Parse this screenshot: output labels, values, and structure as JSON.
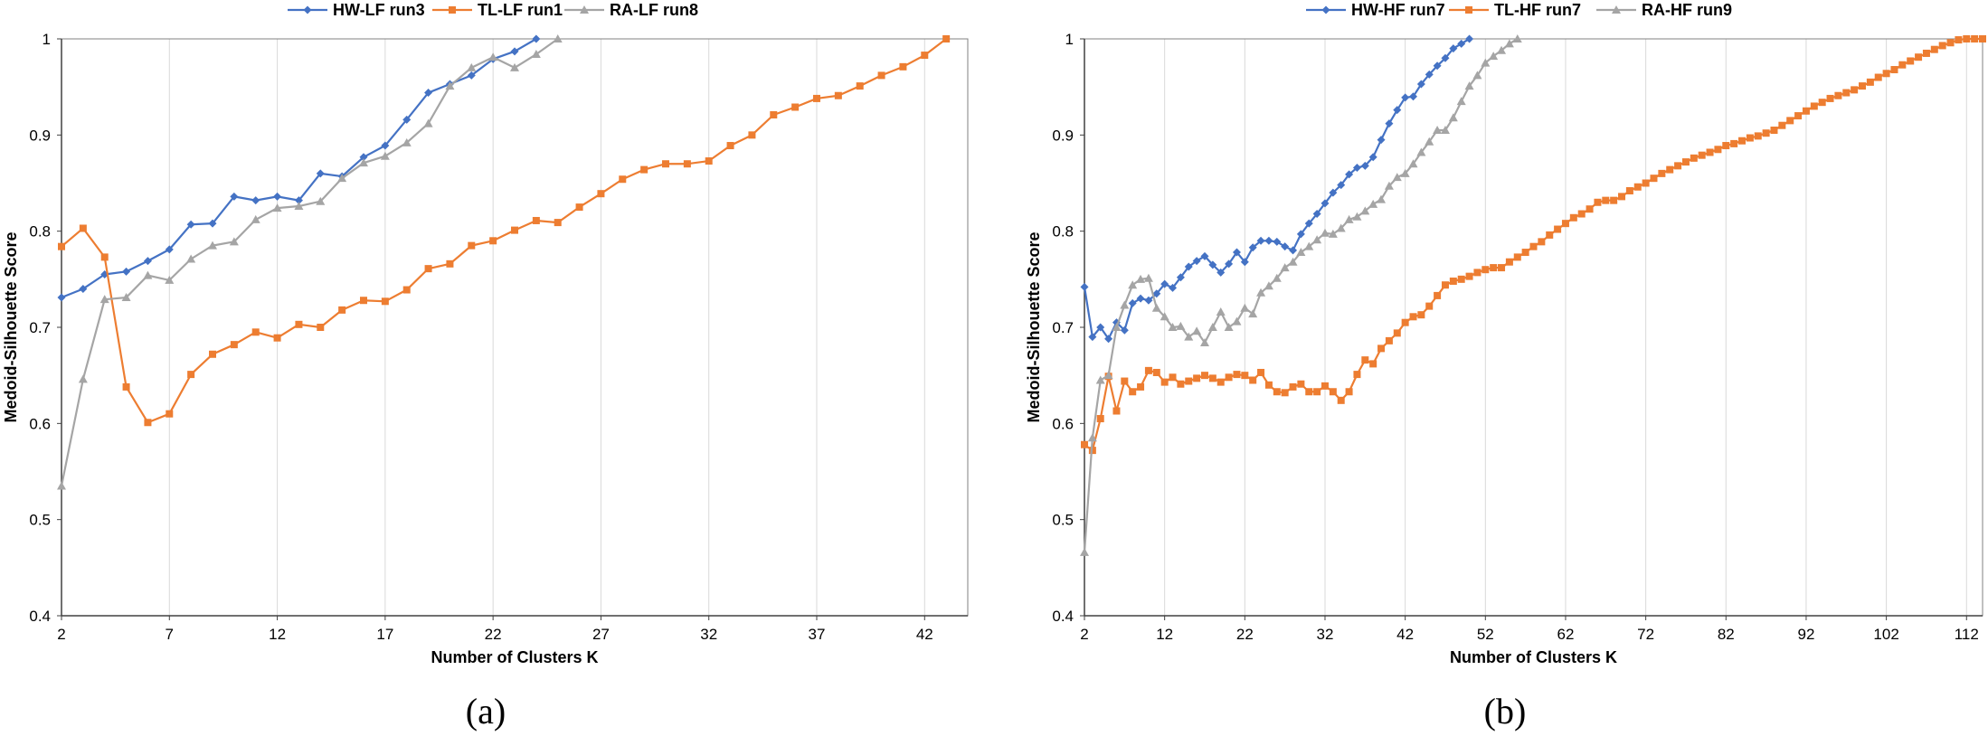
{
  "chart_data": [
    {
      "type": "line",
      "caption": "(a)",
      "title": "",
      "xlabel": "Number of Clusters K",
      "ylabel": "Medoid-Silhouette Score",
      "xlim": [
        2,
        44
      ],
      "ylim": [
        0.4,
        1.0
      ],
      "xticks": [
        2,
        7,
        12,
        17,
        22,
        27,
        32,
        37,
        42
      ],
      "yticks": [
        0.4,
        0.5,
        0.6,
        0.7,
        0.8,
        0.9,
        1.0
      ],
      "ytick_labels": [
        "0.4",
        "0.5",
        "0.6",
        "0.7",
        "0.8",
        "0.9",
        "1"
      ],
      "legend_position": "top",
      "grid": "vertical",
      "series": [
        {
          "name": "HW-LF run3",
          "color": "#4472C4",
          "marker": "diamond",
          "x": [
            2,
            3,
            4,
            5,
            6,
            7,
            8,
            9,
            10,
            11,
            12,
            13,
            14,
            15,
            16,
            17,
            18,
            19,
            20,
            21,
            22,
            23,
            24
          ],
          "values": [
            0.731,
            0.74,
            0.755,
            0.758,
            0.769,
            0.781,
            0.807,
            0.808,
            0.836,
            0.832,
            0.836,
            0.832,
            0.86,
            0.857,
            0.877,
            0.889,
            0.916,
            0.944,
            0.953,
            0.962,
            0.979,
            0.987,
            1.0
          ]
        },
        {
          "name": "TL-LF run1",
          "color": "#ED7D31",
          "marker": "square",
          "x": [
            2,
            3,
            4,
            5,
            6,
            7,
            8,
            9,
            10,
            11,
            12,
            13,
            14,
            15,
            16,
            17,
            18,
            19,
            20,
            21,
            22,
            23,
            24,
            25,
            26,
            27,
            28,
            29,
            30,
            31,
            32,
            33,
            34,
            35,
            36,
            37,
            38,
            39,
            40,
            41,
            42,
            43
          ],
          "values": [
            0.784,
            0.803,
            0.773,
            0.638,
            0.601,
            0.61,
            0.651,
            0.672,
            0.682,
            0.695,
            0.689,
            0.703,
            0.7,
            0.718,
            0.728,
            0.727,
            0.739,
            0.761,
            0.766,
            0.785,
            0.79,
            0.801,
            0.811,
            0.809,
            0.825,
            0.839,
            0.854,
            0.864,
            0.87,
            0.87,
            0.873,
            0.889,
            0.9,
            0.921,
            0.929,
            0.938,
            0.941,
            0.951,
            0.962,
            0.971,
            0.983,
            1.0
          ]
        },
        {
          "name": "RA-LF run8",
          "color": "#A5A5A5",
          "marker": "triangle",
          "x": [
            2,
            3,
            4,
            5,
            6,
            7,
            8,
            9,
            10,
            11,
            12,
            13,
            14,
            15,
            16,
            17,
            18,
            19,
            20,
            21,
            22,
            23,
            24,
            25
          ],
          "values": [
            0.535,
            0.646,
            0.729,
            0.731,
            0.754,
            0.749,
            0.771,
            0.785,
            0.789,
            0.812,
            0.824,
            0.826,
            0.831,
            0.855,
            0.871,
            0.878,
            0.892,
            0.912,
            0.951,
            0.97,
            0.981,
            0.97,
            0.984,
            1.0
          ]
        }
      ]
    },
    {
      "type": "line",
      "caption": "(b)",
      "title": "",
      "xlabel": "Number of Clusters K",
      "ylabel": "Medoid-Silhouette Score",
      "xlim": [
        2,
        114
      ],
      "ylim": [
        0.4,
        1.0
      ],
      "xticks": [
        2,
        12,
        22,
        32,
        42,
        52,
        62,
        72,
        82,
        92,
        102,
        112
      ],
      "yticks": [
        0.4,
        0.5,
        0.6,
        0.7,
        0.8,
        0.9,
        1.0
      ],
      "ytick_labels": [
        "0.4",
        "0.5",
        "0.6",
        "0.7",
        "0.8",
        "0.9",
        "1"
      ],
      "legend_position": "top",
      "grid": "vertical",
      "series": [
        {
          "name": "HW-HF run7",
          "color": "#4472C4",
          "marker": "diamond",
          "x": [
            2,
            3,
            4,
            5,
            6,
            7,
            8,
            9,
            10,
            11,
            12,
            13,
            14,
            15,
            16,
            17,
            18,
            19,
            20,
            21,
            22,
            23,
            24,
            25,
            26,
            27,
            28,
            29,
            30,
            31,
            32,
            33,
            34,
            35,
            36,
            37,
            38,
            39,
            40,
            41,
            42,
            43,
            44,
            45,
            46,
            47,
            48,
            49,
            50
          ],
          "values": [
            0.742,
            0.69,
            0.7,
            0.688,
            0.705,
            0.697,
            0.725,
            0.73,
            0.728,
            0.735,
            0.745,
            0.741,
            0.752,
            0.763,
            0.769,
            0.774,
            0.765,
            0.757,
            0.766,
            0.778,
            0.768,
            0.783,
            0.79,
            0.79,
            0.789,
            0.784,
            0.78,
            0.797,
            0.808,
            0.818,
            0.829,
            0.84,
            0.848,
            0.859,
            0.866,
            0.868,
            0.877,
            0.895,
            0.912,
            0.926,
            0.939,
            0.94,
            0.953,
            0.963,
            0.972,
            0.98,
            0.99,
            0.995,
            1.0
          ]
        },
        {
          "name": "TL-HF run7",
          "color": "#ED7D31",
          "marker": "square",
          "x": [
            2,
            3,
            4,
            5,
            6,
            7,
            8,
            9,
            10,
            11,
            12,
            13,
            14,
            15,
            16,
            17,
            18,
            19,
            20,
            21,
            22,
            23,
            24,
            25,
            26,
            27,
            28,
            29,
            30,
            31,
            32,
            33,
            34,
            35,
            36,
            37,
            38,
            39,
            40,
            41,
            42,
            43,
            44,
            45,
            46,
            47,
            48,
            49,
            50,
            51,
            52,
            53,
            54,
            55,
            56,
            57,
            58,
            59,
            60,
            61,
            62,
            63,
            64,
            65,
            66,
            67,
            68,
            69,
            70,
            71,
            72,
            73,
            74,
            75,
            76,
            77,
            78,
            79,
            80,
            81,
            82,
            83,
            84,
            85,
            86,
            87,
            88,
            89,
            90,
            91,
            92,
            93,
            94,
            95,
            96,
            97,
            98,
            99,
            100,
            101,
            102,
            103,
            104,
            105,
            106,
            107,
            108,
            109,
            110,
            111,
            112,
            113,
            114
          ],
          "values": [
            0.578,
            0.572,
            0.605,
            0.649,
            0.613,
            0.644,
            0.633,
            0.638,
            0.655,
            0.653,
            0.643,
            0.648,
            0.641,
            0.644,
            0.647,
            0.65,
            0.647,
            0.643,
            0.648,
            0.651,
            0.65,
            0.645,
            0.653,
            0.64,
            0.633,
            0.632,
            0.638,
            0.641,
            0.633,
            0.633,
            0.639,
            0.633,
            0.624,
            0.633,
            0.651,
            0.666,
            0.662,
            0.678,
            0.686,
            0.694,
            0.705,
            0.711,
            0.713,
            0.722,
            0.733,
            0.744,
            0.748,
            0.75,
            0.753,
            0.757,
            0.76,
            0.762,
            0.762,
            0.768,
            0.773,
            0.778,
            0.784,
            0.789,
            0.796,
            0.802,
            0.808,
            0.814,
            0.818,
            0.823,
            0.83,
            0.832,
            0.832,
            0.836,
            0.842,
            0.846,
            0.85,
            0.855,
            0.86,
            0.864,
            0.868,
            0.872,
            0.876,
            0.879,
            0.882,
            0.885,
            0.889,
            0.891,
            0.894,
            0.897,
            0.899,
            0.902,
            0.905,
            0.91,
            0.915,
            0.92,
            0.925,
            0.93,
            0.934,
            0.938,
            0.941,
            0.944,
            0.947,
            0.951,
            0.955,
            0.96,
            0.964,
            0.968,
            0.973,
            0.977,
            0.981,
            0.985,
            0.989,
            0.993,
            0.996,
            0.999,
            1.0,
            1.0,
            1.0
          ]
        },
        {
          "name": "RA-HF run9",
          "color": "#A5A5A5",
          "marker": "triangle",
          "x": [
            2,
            3,
            4,
            5,
            6,
            7,
            8,
            9,
            10,
            11,
            12,
            13,
            14,
            15,
            16,
            17,
            18,
            19,
            20,
            21,
            22,
            23,
            24,
            25,
            26,
            27,
            28,
            29,
            30,
            31,
            32,
            33,
            34,
            35,
            36,
            37,
            38,
            39,
            40,
            41,
            42,
            43,
            44,
            45,
            46,
            47,
            48,
            49,
            50,
            51,
            52,
            53,
            54,
            55,
            56
          ],
          "values": [
            0.466,
            0.585,
            0.645,
            0.65,
            0.7,
            0.723,
            0.744,
            0.75,
            0.751,
            0.72,
            0.711,
            0.7,
            0.701,
            0.69,
            0.696,
            0.684,
            0.7,
            0.716,
            0.7,
            0.706,
            0.72,
            0.714,
            0.736,
            0.743,
            0.751,
            0.762,
            0.768,
            0.778,
            0.784,
            0.791,
            0.798,
            0.797,
            0.803,
            0.812,
            0.815,
            0.821,
            0.828,
            0.833,
            0.847,
            0.856,
            0.86,
            0.87,
            0.882,
            0.893,
            0.905,
            0.905,
            0.918,
            0.935,
            0.951,
            0.962,
            0.975,
            0.982,
            0.988,
            0.995,
            1.0
          ]
        }
      ]
    }
  ]
}
